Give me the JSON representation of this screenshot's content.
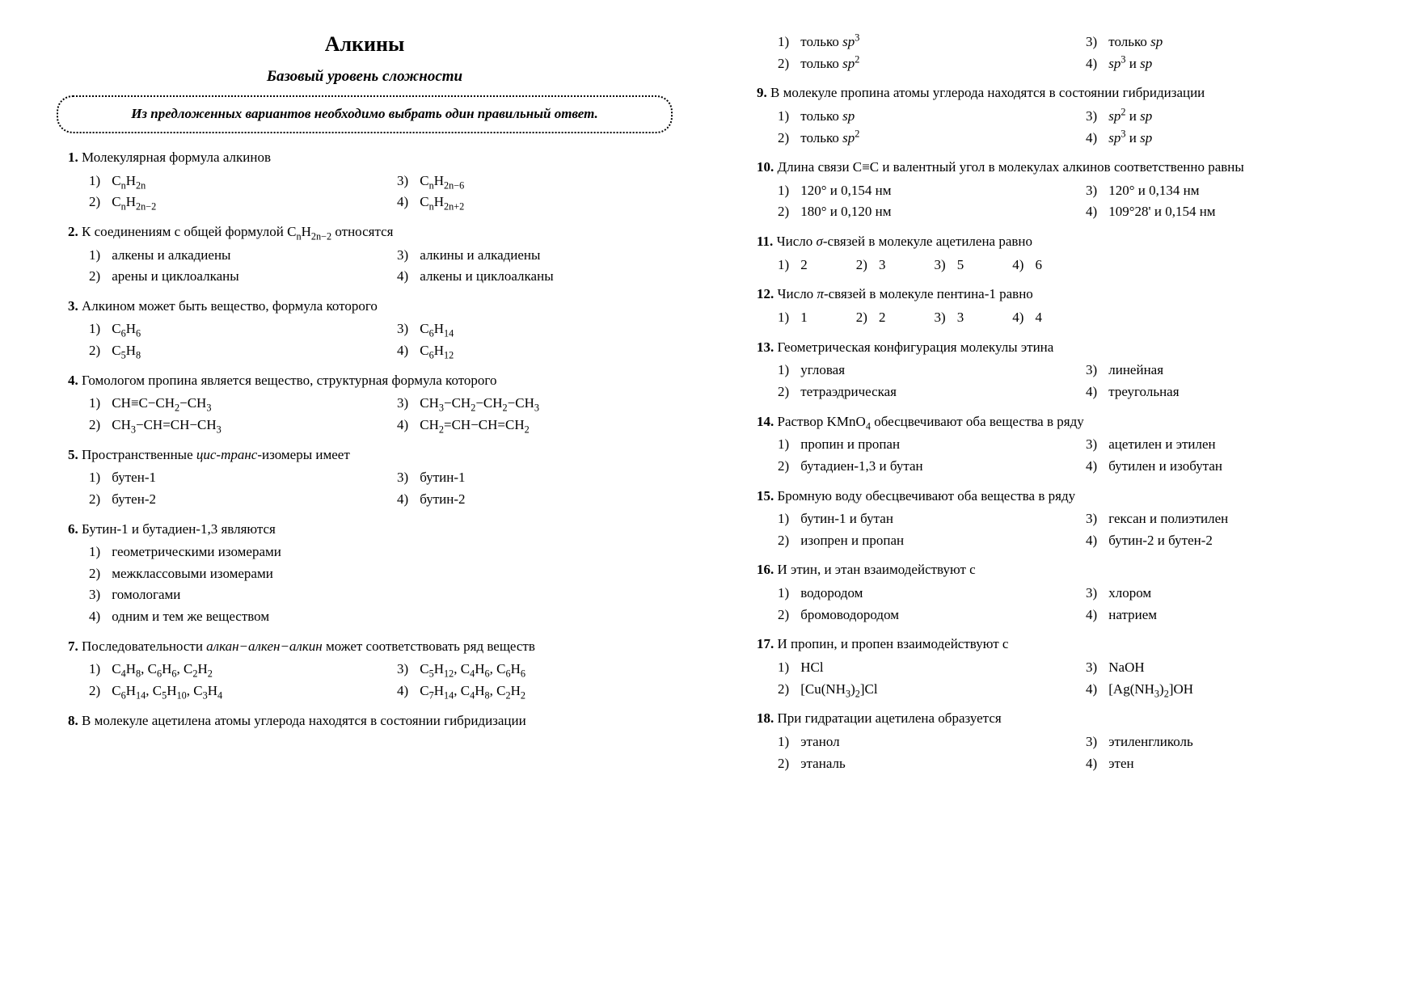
{
  "title": "Алкины",
  "subtitle": "Базовый уровень сложности",
  "instruction": "Из предложенных вариантов необходимо выбрать один правильный ответ.",
  "q1": {
    "num": "1.",
    "stem": "Молекулярная формула алкинов",
    "o1": "C<sub>n</sub>H<sub>2n</sub>",
    "o2": "C<sub>n</sub>H<sub>2n−2</sub>",
    "o3": "C<sub>n</sub>H<sub>2n−6</sub>",
    "o4": "C<sub>n</sub>H<sub>2n+2</sub>"
  },
  "q2": {
    "num": "2.",
    "stem": "К соединениям с общей формулой C<sub>n</sub>H<sub>2n−2</sub> относятся",
    "o1": "алкены и алкадиены",
    "o2": "арены и циклоалканы",
    "o3": "алкины и алкадиены",
    "o4": "алкены и циклоалканы"
  },
  "q3": {
    "num": "3.",
    "stem": "Алкином может быть вещество, формула которого",
    "o1": "C<sub>6</sub>H<sub>6</sub>",
    "o2": "C<sub>5</sub>H<sub>8</sub>",
    "o3": "C<sub>6</sub>H<sub>14</sub>",
    "o4": "C<sub>6</sub>H<sub>12</sub>"
  },
  "q4": {
    "num": "4.",
    "stem": "Гомологом пропина является вещество, структурная формула которого",
    "o1": "CH≡C−CH<sub>2</sub>−CH<sub>3</sub>",
    "o2": "CH<sub>3</sub>−CH=CH−CH<sub>3</sub>",
    "o3": "CH<sub>3</sub>−CH<sub>2</sub>−CH<sub>2</sub>−CH<sub>3</sub>",
    "o4": "CH<sub>2</sub>=CH−CH=CH<sub>2</sub>"
  },
  "q5": {
    "num": "5.",
    "stem": "Пространственные <span class=\"em\">цис-транс</span>-изомеры имеет",
    "o1": "бутен-1",
    "o2": "бутен-2",
    "o3": "бутин-1",
    "o4": "бутин-2"
  },
  "q6": {
    "num": "6.",
    "stem": "Бутин-1 и бутадиен-1,3 являются",
    "o1": "геометрическими изомерами",
    "o2": "межклассовыми изомерами",
    "o3": "гомологами",
    "o4": "одним и тем же веществом"
  },
  "q7": {
    "num": "7.",
    "stem": "Последовательности <span class=\"em\">алкан−алкен−алкин</span> может соответствовать ряд веществ",
    "o1": "C<sub>4</sub>H<sub>8</sub>, C<sub>6</sub>H<sub>6</sub>, C<sub>2</sub>H<sub>2</sub>",
    "o2": "C<sub>6</sub>H<sub>14</sub>, C<sub>5</sub>H<sub>10</sub>, C<sub>3</sub>H<sub>4</sub>",
    "o3": "C<sub>5</sub>H<sub>12</sub>, C<sub>4</sub>H<sub>6</sub>, C<sub>6</sub>H<sub>6</sub>",
    "o4": "C<sub>7</sub>H<sub>14</sub>, C<sub>4</sub>H<sub>8</sub>, C<sub>2</sub>H<sub>2</sub>"
  },
  "q8": {
    "num": "8.",
    "stem": "В молекуле ацетилена атомы углерода находятся в состоянии гибридизации",
    "o1": "только <span class=\"em\">sp</span><sup>3</sup>",
    "o2": "только <span class=\"em\">sp</span><sup>2</sup>",
    "o3": "только <span class=\"em\">sp</span>",
    "o4": "<span class=\"em\">sp</span><sup>3</sup> и <span class=\"em\">sp</span>"
  },
  "q9": {
    "num": "9.",
    "stem": "В молекуле пропина атомы углерода находятся в состоянии гибридизации",
    "o1": "только <span class=\"em\">sp</span>",
    "o2": "только <span class=\"em\">sp</span><sup>2</sup>",
    "o3": "<span class=\"em\">sp</span><sup>2</sup> и <span class=\"em\">sp</span>",
    "o4": "<span class=\"em\">sp</span><sup>3</sup> и <span class=\"em\">sp</span>"
  },
  "q10": {
    "num": "10.",
    "stem": "Длина связи C≡C и валентный угол в молекулах алкинов соответственно равны",
    "o1": "120° и 0,154 нм",
    "o2": "180° и 0,120 нм",
    "o3": "120° и 0,134 нм",
    "o4": "109°28' и 0,154 нм"
  },
  "q11": {
    "num": "11.",
    "stem": "Число <span class=\"em\">σ</span>-связей в молекуле ацетилена равно",
    "o1": "2",
    "o2": "3",
    "o3": "5",
    "o4": "6"
  },
  "q12": {
    "num": "12.",
    "stem": "Число <span class=\"em\">π</span>-связей в молекуле пентина-1 равно",
    "o1": "1",
    "o2": "2",
    "o3": "3",
    "o4": "4"
  },
  "q13": {
    "num": "13.",
    "stem": "Геометрическая конфигурация молекулы этина",
    "o1": "угловая",
    "o2": "тетраэдрическая",
    "o3": "линейная",
    "o4": "треугольная"
  },
  "q14": {
    "num": "14.",
    "stem": "Раствор KMnO<sub>4</sub> обесцвечивают оба вещества в ряду",
    "o1": "пропин и пропан",
    "o2": "бутадиен-1,3 и бутан",
    "o3": "ацетилен и этилен",
    "o4": "бутилен и изобутан"
  },
  "q15": {
    "num": "15.",
    "stem": "Бромную воду обесцвечивают оба вещества в ряду",
    "o1": "бутин-1 и бутан",
    "o2": "изопрен и пропан",
    "o3": "гексан и полиэтилен",
    "o4": "бутин-2 и бутен-2"
  },
  "q16": {
    "num": "16.",
    "stem": "И этин, и этан взаимодействуют с",
    "o1": "водородом",
    "o2": "бромоводородом",
    "o3": "хлором",
    "o4": "натрием"
  },
  "q17": {
    "num": "17.",
    "stem": "И пропин, и пропен взаимодействуют с",
    "o1": "HCl",
    "o2": "[Cu(NH<sub>3</sub>)<sub>2</sub>]Cl",
    "o3": "NaOH",
    "o4": "[Ag(NH<sub>3</sub>)<sub>2</sub>]OH"
  },
  "q18": {
    "num": "18.",
    "stem": "При гидратации ацетилена образуется",
    "o1": "этанол",
    "o2": "этаналь",
    "o3": "этиленгликоль",
    "o4": "этен"
  },
  "labels": {
    "l1": "1)",
    "l2": "2)",
    "l3": "3)",
    "l4": "4)"
  }
}
